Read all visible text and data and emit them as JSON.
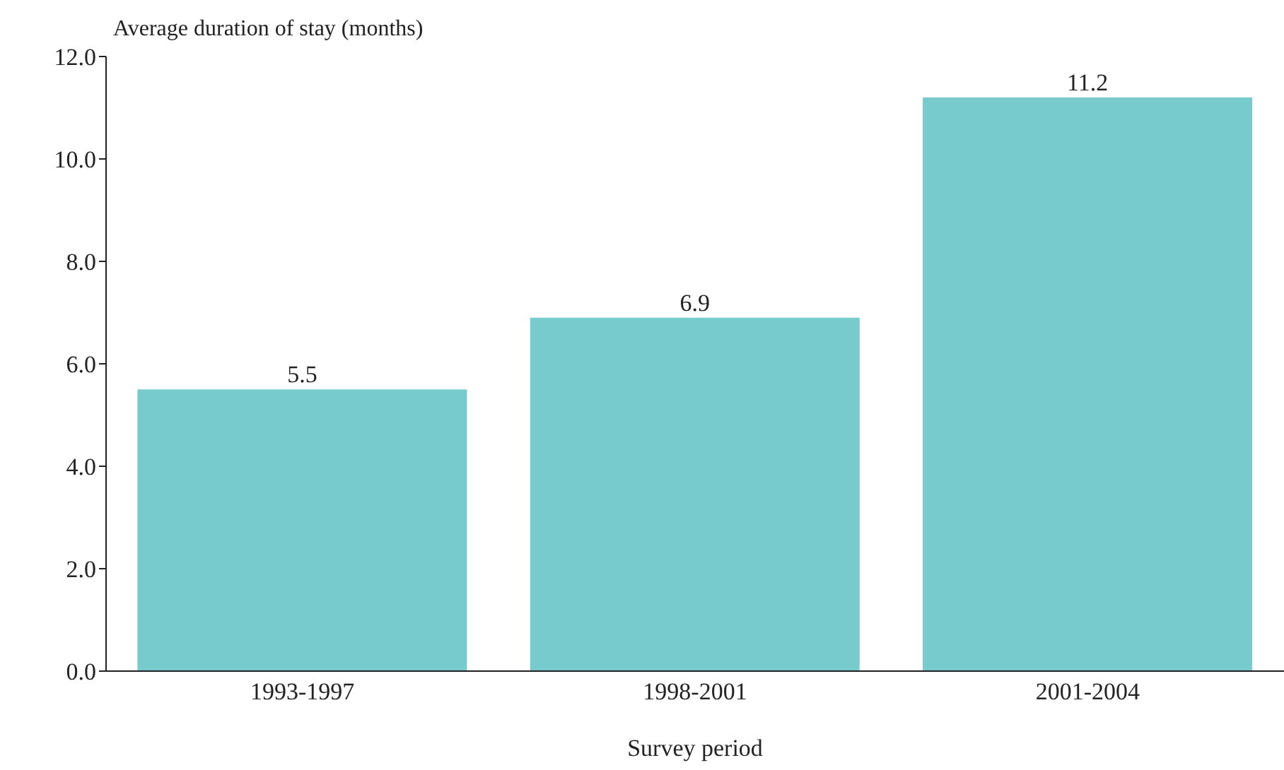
{
  "chart_data": {
    "type": "bar",
    "ylabel": "Average duration of stay (months)",
    "xlabel": "Survey period",
    "categories": [
      "1993-1997",
      "1998-2001",
      "2001-2004"
    ],
    "values": [
      5.5,
      6.9,
      11.2
    ],
    "color": "#77cbcc",
    "ylim": [
      0,
      12
    ],
    "yticks": [
      {
        "value": 0,
        "label": "0.0"
      },
      {
        "value": 2,
        "label": "2.0"
      },
      {
        "value": 4,
        "label": "4.0"
      },
      {
        "value": 6,
        "label": "6.0"
      },
      {
        "value": 8,
        "label": "8.0"
      },
      {
        "value": 10,
        "label": "10.0"
      },
      {
        "value": 12,
        "label": "12.0"
      }
    ],
    "data_labels": true
  }
}
